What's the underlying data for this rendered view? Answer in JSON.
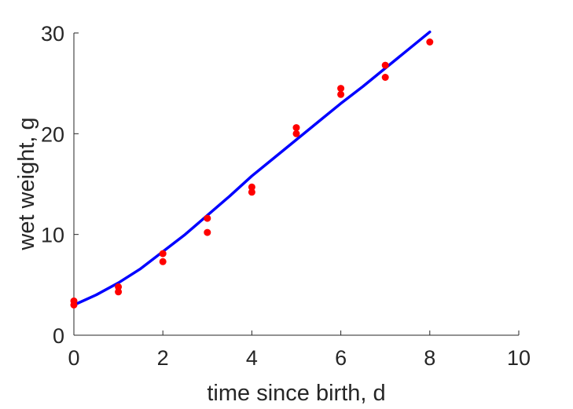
{
  "chart_data": {
    "type": "scatter",
    "title": "",
    "xlabel": "time since birth, d",
    "ylabel": "wet weight, g",
    "xlim": [
      0,
      10
    ],
    "ylim": [
      0,
      30
    ],
    "xticks": [
      0,
      2,
      4,
      6,
      8,
      10
    ],
    "yticks": [
      0,
      10,
      20,
      30
    ],
    "grid": false,
    "colors": {
      "points": "#ff0000",
      "curve": "#0000ff",
      "axes": "#262626"
    },
    "series": [
      {
        "kind": "scatter",
        "x": [
          0,
          0,
          1,
          1,
          2,
          2,
          3,
          3,
          4,
          4,
          5,
          5,
          6,
          6,
          7,
          7,
          8
        ],
        "y": [
          3.4,
          3.0,
          4.8,
          4.3,
          8.1,
          7.3,
          11.6,
          10.2,
          14.7,
          14.2,
          20.6,
          20.0,
          24.5,
          23.9,
          26.8,
          25.6,
          29.1
        ]
      },
      {
        "kind": "line",
        "x": [
          0,
          0.5,
          1,
          1.5,
          2,
          2.5,
          3,
          3.5,
          4,
          4.5,
          5,
          5.5,
          6,
          6.5,
          7,
          7.5,
          8
        ],
        "y": [
          3.0,
          4.0,
          5.2,
          6.6,
          8.3,
          10.0,
          11.9,
          13.8,
          15.8,
          17.6,
          19.4,
          21.2,
          23.0,
          24.7,
          26.5,
          28.3,
          30.1
        ]
      }
    ]
  }
}
